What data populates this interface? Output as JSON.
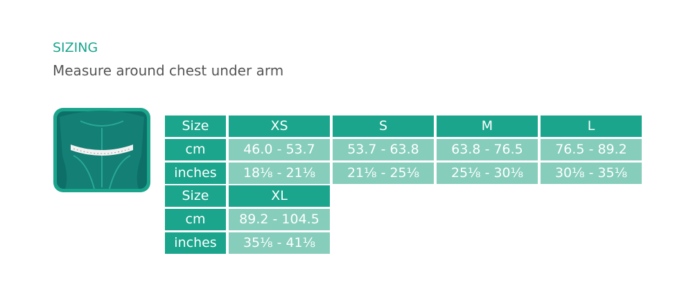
{
  "header": {
    "title": "SIZING",
    "subtitle": "Measure around chest under arm"
  },
  "tables": [
    {
      "header": [
        "Size",
        "XS",
        "S",
        "M",
        "L"
      ],
      "rows": [
        [
          "cm",
          "46.0 - 53.7",
          "53.7 - 63.8",
          "63.8 - 76.5",
          "76.5 - 89.2"
        ],
        [
          "inches",
          "18⅛ - 21⅛",
          "21⅛ - 25⅛",
          "25⅛ - 30⅛",
          "30⅛ - 35⅛"
        ]
      ]
    },
    {
      "header": [
        "Size",
        "XL"
      ],
      "rows": [
        [
          "cm",
          "89.2 - 104.5"
        ],
        [
          "inches",
          "35⅛ - 41⅛"
        ]
      ]
    }
  ]
}
